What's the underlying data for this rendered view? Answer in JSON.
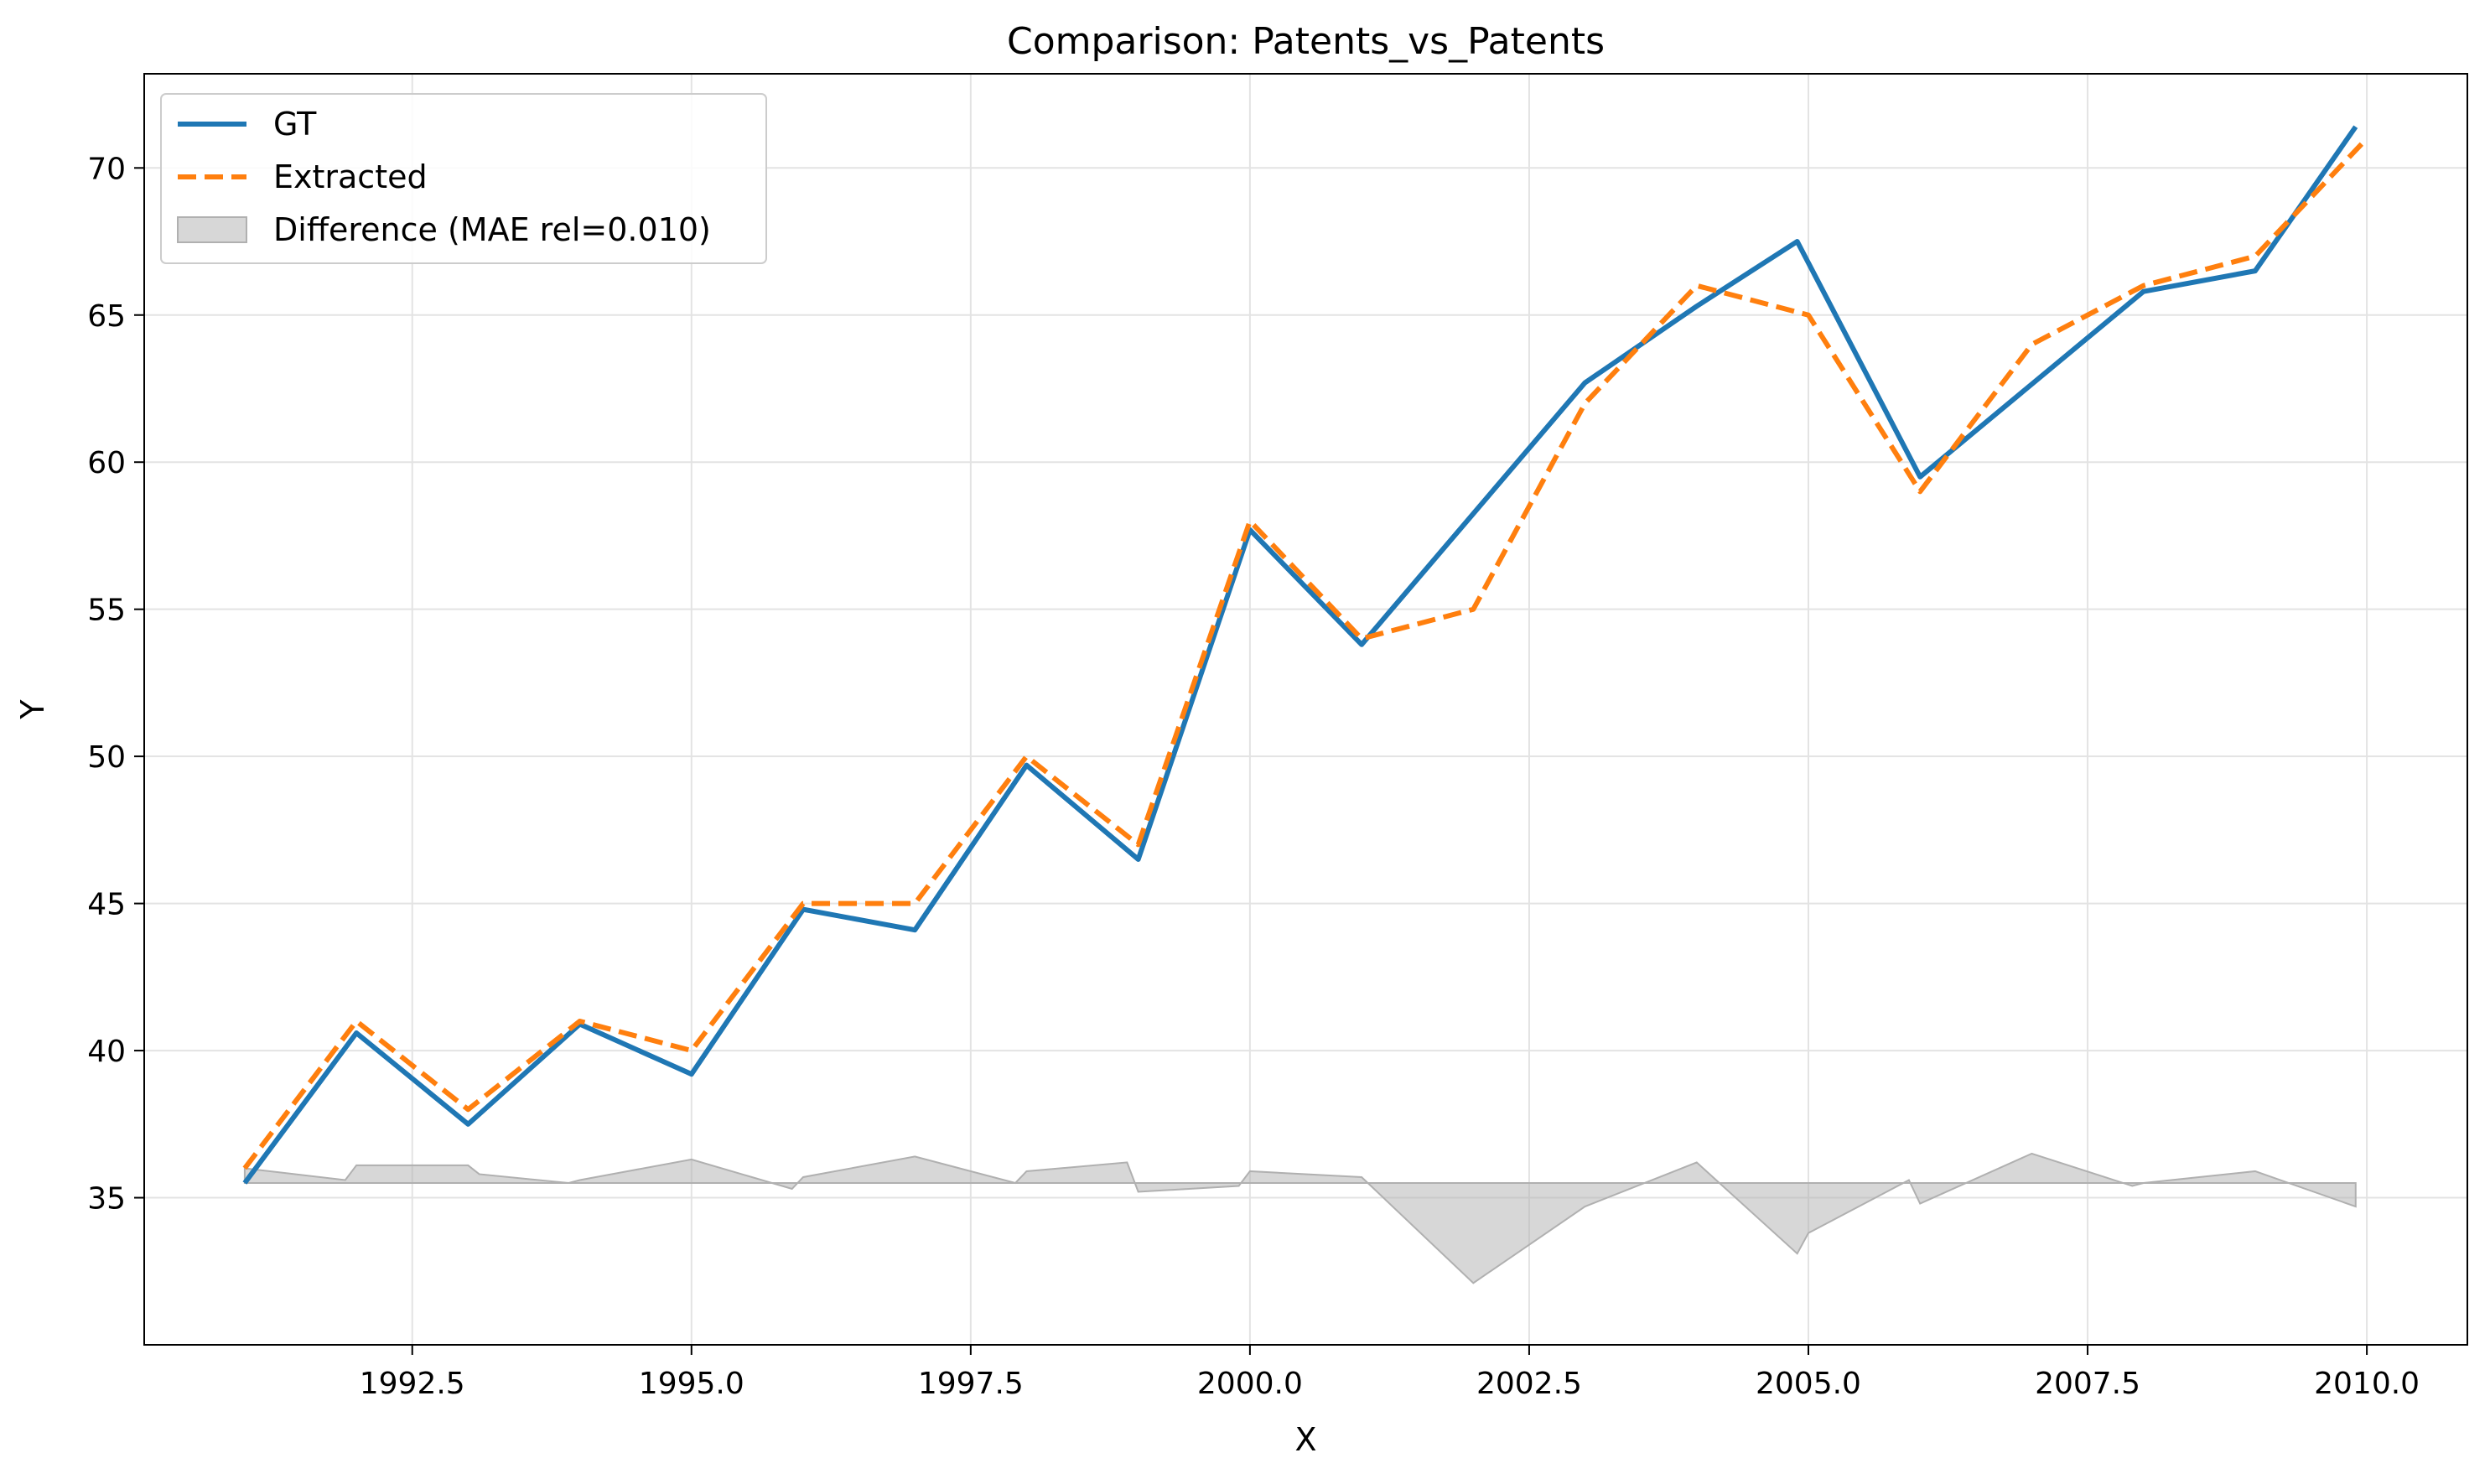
{
  "chart_data": {
    "type": "line",
    "title": "Comparison: Patents_vs_Patents",
    "xlabel": "X",
    "ylabel": "Y",
    "xlim": [
      1990.1,
      2010.9
    ],
    "ylim": [
      30.0,
      73.2
    ],
    "xticks": [
      1992.5,
      1995.0,
      1997.5,
      2000.0,
      2002.5,
      2005.0,
      2007.5,
      2010.0
    ],
    "xtick_labels": [
      "1992.5",
      "1995.0",
      "1997.5",
      "2000.0",
      "2002.5",
      "2005.0",
      "2007.5",
      "2010.0"
    ],
    "yticks": [
      35,
      40,
      45,
      50,
      55,
      60,
      65,
      70
    ],
    "ytick_labels": [
      "35",
      "40",
      "45",
      "50",
      "55",
      "60",
      "65",
      "70"
    ],
    "grid": true,
    "legend_position": "top-left",
    "series": [
      {
        "name": "GT",
        "color": "#1f77b4",
        "style": "solid",
        "x": [
          1991,
          1992,
          1993,
          1994,
          1995,
          1996,
          1997,
          1998,
          1999,
          2000,
          2001,
          2003,
          2004,
          2004.9,
          2006,
          2008,
          2009,
          2009.9
        ],
        "y": [
          35.5,
          40.6,
          37.5,
          40.9,
          39.2,
          44.8,
          44.1,
          49.7,
          46.5,
          57.7,
          53.8,
          62.7,
          65.3,
          67.5,
          59.5,
          65.8,
          66.5,
          71.4
        ]
      },
      {
        "name": "Extracted",
        "color": "#ff7f0e",
        "style": "dashed",
        "x": [
          1991,
          1992,
          1993,
          1994,
          1995,
          1996,
          1997,
          1998,
          1999,
          2000,
          2001,
          2002,
          2003,
          2004,
          2005,
          2006,
          2007,
          2008,
          2009,
          2010
        ],
        "y": [
          36.0,
          41.0,
          38.0,
          41.0,
          40.0,
          45.0,
          45.0,
          50.0,
          47.0,
          58.0,
          54.0,
          55.0,
          62.0,
          66.0,
          65.0,
          59.0,
          64.0,
          66.0,
          67.0,
          71.0
        ]
      }
    ],
    "difference": {
      "name": "Difference (MAE rel=0.010)",
      "color": "#b0b0b0",
      "baseline": 35.5,
      "x": [
        1991,
        1991.9,
        1992,
        1993,
        1993.1,
        1993.9,
        1994,
        1995,
        1995.9,
        1996,
        1997,
        1997.9,
        1998,
        1998.9,
        1999,
        1999.9,
        2000,
        2001,
        2002,
        2003,
        2004,
        2004.9,
        2005,
        2005.9,
        2006,
        2007,
        2007.9,
        2008,
        2009,
        2009.9
      ],
      "y": [
        36.0,
        35.6,
        36.1,
        36.1,
        35.8,
        35.5,
        35.6,
        36.3,
        35.3,
        35.7,
        36.4,
        35.5,
        35.9,
        36.2,
        35.2,
        35.4,
        35.9,
        35.7,
        32.1,
        34.7,
        36.2,
        33.1,
        33.8,
        35.6,
        34.8,
        36.5,
        35.4,
        35.5,
        35.9,
        34.7
      ]
    }
  }
}
